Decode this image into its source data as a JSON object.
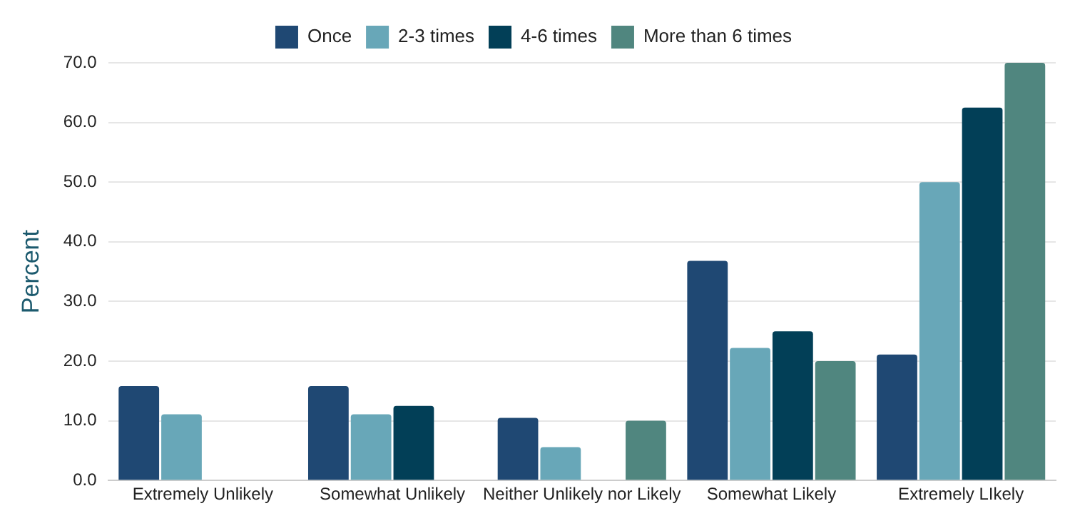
{
  "chart_data": {
    "type": "bar",
    "ylabel": "Percent",
    "categories": [
      "Extremely Unlikely",
      "Somewhat Unlikely",
      "Neither Unlikely nor Likely",
      "Somewhat Likely",
      "Extremely LIkely"
    ],
    "series": [
      {
        "name": "Once",
        "color": "#1f4873",
        "values": [
          15.8,
          15.8,
          10.5,
          36.8,
          21.1
        ]
      },
      {
        "name": "2-3 times",
        "color": "#68a7b8",
        "values": [
          11.1,
          11.1,
          5.6,
          22.2,
          50.0
        ]
      },
      {
        "name": "4-6 times",
        "color": "#023f57",
        "values": [
          null,
          12.5,
          null,
          25.0,
          62.5
        ]
      },
      {
        "name": "More than 6 times",
        "color": "#50867f",
        "values": [
          null,
          null,
          10.0,
          20.0,
          70.0
        ]
      }
    ],
    "ylim": [
      0,
      70
    ],
    "yticks": [
      {
        "value": 0,
        "label": "0.0"
      },
      {
        "value": 10,
        "label": "10.0"
      },
      {
        "value": 20,
        "label": "20.0"
      },
      {
        "value": 30,
        "label": "30.0"
      },
      {
        "value": 40,
        "label": "40.0"
      },
      {
        "value": 50,
        "label": "50.0"
      },
      {
        "value": 60,
        "label": "60.0"
      },
      {
        "value": 70,
        "label": "70.0"
      }
    ],
    "grid": "y",
    "legend": "top"
  }
}
